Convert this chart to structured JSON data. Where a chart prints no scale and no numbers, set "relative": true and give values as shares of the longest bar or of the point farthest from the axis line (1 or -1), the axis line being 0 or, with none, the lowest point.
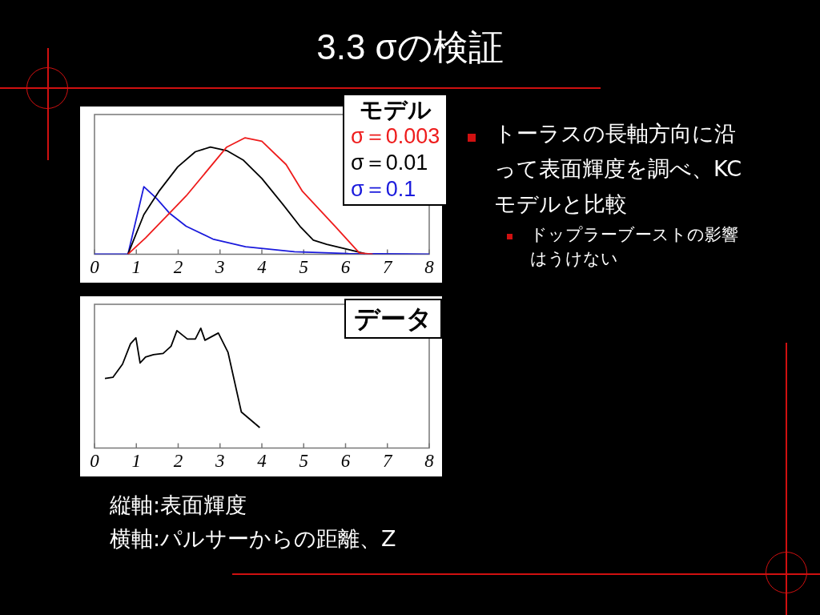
{
  "chart_data": [
    {
      "type": "other",
      "title": "3.3 σの検証",
      "annotations": [
        "トーラスの長軸方向に沿って表面輝度を調べ、KCモデルと比較",
        "ドップラーブーストの影響はうけない"
      ]
    },
    {
      "type": "line",
      "relative": true,
      "xlim": [
        0,
        8
      ],
      "xticks": [
        0,
        1,
        2,
        3,
        4,
        5,
        6,
        7,
        8
      ],
      "tick_labels": "x",
      "grid": false,
      "marker": "none",
      "legend": "top right",
      "legend_title": "モデル",
      "series": [
        {
          "name": "σ＝0.003",
          "color": "#ee1c1c",
          "x": [
            0.8,
            1.22,
            2.19,
            3.16,
            3.6,
            4.0,
            4.58,
            4.97,
            5.75,
            6.33,
            6.65
          ],
          "values": [
            0,
            0.14,
            0.5,
            0.92,
            1.0,
            0.97,
            0.77,
            0.54,
            0.24,
            0.01,
            0
          ]
        },
        {
          "name": "σ＝0.01",
          "color": "#000000",
          "x": [
            0.8,
            1.18,
            1.54,
            1.99,
            2.41,
            2.77,
            3.16,
            3.55,
            4.0,
            4.52,
            4.91,
            5.23,
            5.55,
            6.07,
            6.46
          ],
          "values": [
            0,
            0.34,
            0.54,
            0.75,
            0.88,
            0.92,
            0.89,
            0.81,
            0.65,
            0.42,
            0.24,
            0.12,
            0.085,
            0.04,
            0.006
          ]
        },
        {
          "name": "σ＝0.1",
          "color": "#1a1adc",
          "x": [
            0,
            0.8,
            1.18,
            1.48,
            1.8,
            2.19,
            2.83,
            3.61,
            4.78,
            6.07,
            8
          ],
          "values": [
            0,
            0,
            0.58,
            0.48,
            0.35,
            0.24,
            0.13,
            0.064,
            0.021,
            0.006,
            0
          ]
        }
      ]
    },
    {
      "type": "line",
      "relative": true,
      "title": "データ",
      "xlim": [
        0,
        8
      ],
      "xticks": [
        0,
        1,
        2,
        3,
        4,
        5,
        6,
        7,
        8
      ],
      "tick_labels": "x",
      "grid": false,
      "marker": "none",
      "annotations": [
        "縦軸:表面輝度",
        "横軸:パルサーからの距離、Z"
      ],
      "series": [
        {
          "color": "#000000",
          "x": [
            0.25,
            0.44,
            0.67,
            0.86,
            0.99,
            1.09,
            1.22,
            1.41,
            1.64,
            1.83,
            1.97,
            2.22,
            2.41,
            2.54,
            2.64,
            2.96,
            3.19,
            3.51,
            3.95
          ],
          "values": [
            0.58,
            0.59,
            0.7,
            0.87,
            0.92,
            0.71,
            0.76,
            0.78,
            0.79,
            0.85,
            0.98,
            0.91,
            0.91,
            1.0,
            0.9,
            0.96,
            0.8,
            0.3,
            0.17
          ]
        }
      ]
    }
  ]
}
